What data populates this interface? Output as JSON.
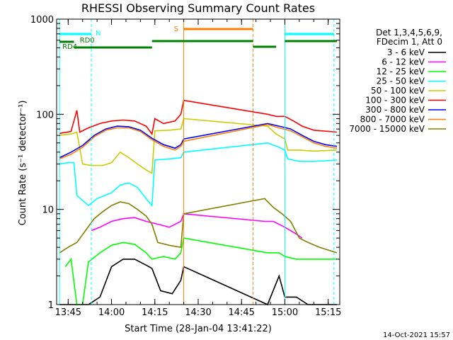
{
  "chart_data": {
    "type": "line",
    "title": "RHESSI Observing Summary Count Rates",
    "xlabel": "Start Time (28-Jan-04 13:41:22)",
    "ylabel": "Count Rate (s⁻¹ detector⁻¹)",
    "y_scale": "log",
    "ylim": [
      1,
      1000
    ],
    "xlim": [
      "13:41",
      "15:19"
    ],
    "x_ticks": [
      "13:45",
      "14:00",
      "14:15",
      "14:30",
      "14:45",
      "15:00",
      "15:15"
    ],
    "y_ticks": [
      "1",
      "10",
      "100",
      "1000"
    ],
    "legend_header": [
      "Det 1,3,4,5,6,9,",
      "FDecim 1, Att 0"
    ],
    "legend_position": "right",
    "footer_date": "14-Oct-2021 15:57",
    "annotations": [
      {
        "label": "N",
        "color": "#00ffff"
      },
      {
        "label": "S",
        "color": "#ff8000"
      },
      {
        "label": "RD0",
        "color": "#008000"
      },
      {
        "label": "RD4",
        "color": "#008000"
      }
    ],
    "series": [
      {
        "name": "3 - 6 keV",
        "color": "#000000",
        "x": [
          "13:42",
          "13:48",
          "13:52",
          "13:56",
          "14:00",
          "14:04",
          "14:08",
          "14:12",
          "14:14",
          "14:17",
          "14:21",
          "14:24",
          "14:25",
          "14:54",
          "14:58",
          "15:00",
          "15:04",
          "15:08",
          "15:12",
          "15:18"
        ],
        "y": [
          1,
          1,
          1,
          1.2,
          2.5,
          3.0,
          3.0,
          2.6,
          2.4,
          1.4,
          1.3,
          1.8,
          2.5,
          1,
          2.0,
          1.2,
          1.2,
          1,
          1,
          1
        ]
      },
      {
        "name": "6 - 12 keV",
        "color": "#ff00ff",
        "x": [
          "13:53",
          "13:56",
          "14:00",
          "14:04",
          "14:08",
          "14:12",
          "14:16",
          "14:20",
          "14:24",
          "14:25",
          "14:53",
          "14:56",
          "15:00",
          "15:04",
          "15:06"
        ],
        "y": [
          6.0,
          6.5,
          7.5,
          8.0,
          8.2,
          7.5,
          7.0,
          6.5,
          7.5,
          9.0,
          7.5,
          7.5,
          6.5,
          5.5,
          5.0
        ]
      },
      {
        "name": "12 - 25 keV",
        "color": "#00ff00",
        "x": [
          "13:44",
          "13:46",
          "13:48",
          "13:50",
          "13:52",
          "13:56",
          "14:00",
          "14:04",
          "14:08",
          "14:12",
          "14:14",
          "14:18",
          "14:22",
          "14:24",
          "14:25",
          "14:54",
          "14:58",
          "15:00",
          "15:04",
          "15:08",
          "15:12",
          "15:18"
        ],
        "y": [
          2.5,
          3.0,
          1.0,
          1.0,
          2.8,
          3.5,
          4.2,
          4.5,
          4.3,
          3.5,
          3.0,
          3.2,
          3.0,
          3.5,
          5.0,
          3.5,
          3.5,
          3.2,
          3.0,
          3.0,
          3.0,
          3.0
        ]
      },
      {
        "name": "25 - 50 keV",
        "color": "#00ffff",
        "x": [
          "13:42",
          "13:45",
          "13:47",
          "13:48",
          "13:52",
          "13:55",
          "14:00",
          "14:03",
          "14:06",
          "14:09",
          "14:12",
          "14:14",
          "14:15",
          "14:20",
          "14:24",
          "14:25",
          "14:54",
          "14:58",
          "15:00",
          "15:01",
          "15:05",
          "15:10",
          "15:18"
        ],
        "y": [
          30,
          31,
          31,
          14,
          11,
          13,
          15,
          18,
          19,
          17,
          13,
          11,
          33,
          34,
          35,
          40,
          50,
          45,
          42,
          34,
          32,
          32,
          33
        ]
      },
      {
        "name": "50 - 100 keV",
        "color": "#cccc00",
        "x": [
          "13:42",
          "13:46",
          "13:48",
          "13:50",
          "13:53",
          "13:57",
          "14:00",
          "14:03",
          "14:06",
          "14:09",
          "14:12",
          "14:14",
          "14:15",
          "14:20",
          "14:24",
          "14:25",
          "14:54",
          "14:57",
          "15:00",
          "15:01",
          "15:05",
          "15:10",
          "15:18"
        ],
        "y": [
          60,
          62,
          65,
          30,
          29,
          29,
          31,
          40,
          35,
          30,
          26,
          24,
          67,
          68,
          70,
          90,
          75,
          62,
          55,
          42,
          42,
          41,
          42
        ]
      },
      {
        "name": "100 - 300 keV",
        "color": "#ff0000",
        "x": [
          "13:42",
          "13:46",
          "13:48",
          "13:49",
          "13:52",
          "13:56",
          "14:00",
          "14:04",
          "14:08",
          "14:12",
          "14:14",
          "14:15",
          "14:18",
          "14:22",
          "14:24",
          "14:25",
          "14:54",
          "14:57",
          "15:00",
          "15:03",
          "15:06",
          "15:10",
          "15:18"
        ],
        "y": [
          63,
          66,
          110,
          65,
          72,
          80,
          85,
          87,
          85,
          75,
          62,
          90,
          80,
          85,
          100,
          140,
          100,
          95,
          95,
          85,
          75,
          68,
          65
        ]
      },
      {
        "name": "300 - 800 keV",
        "color": "#0000ff",
        "x": [
          "13:42",
          "13:46",
          "13:50",
          "13:54",
          "13:58",
          "14:02",
          "14:06",
          "14:10",
          "14:14",
          "14:18",
          "14:22",
          "14:24",
          "14:25",
          "14:54",
          "14:58",
          "15:02",
          "15:06",
          "15:10",
          "15:14",
          "15:18"
        ],
        "y": [
          35,
          40,
          47,
          60,
          70,
          75,
          74,
          68,
          56,
          48,
          44,
          48,
          55,
          80,
          75,
          70,
          60,
          52,
          48,
          46
        ]
      },
      {
        "name": "800 - 7000 keV",
        "color": "#ff8000",
        "x": [
          "13:42",
          "13:46",
          "13:50",
          "13:54",
          "13:58",
          "14:02",
          "14:06",
          "14:10",
          "14:14",
          "14:18",
          "14:22",
          "14:24",
          "14:25",
          "14:54",
          "14:58",
          "15:02",
          "15:06",
          "15:10",
          "15:14",
          "15:18"
        ],
        "y": [
          34,
          38,
          45,
          58,
          68,
          72,
          72,
          66,
          54,
          46,
          42,
          46,
          52,
          78,
          72,
          67,
          58,
          50,
          46,
          44
        ]
      },
      {
        "name": "7000 - 15000 keV",
        "color": "#808000",
        "x": [
          "13:42",
          "13:45",
          "13:48",
          "13:51",
          "13:54",
          "13:57",
          "14:00",
          "14:03",
          "14:06",
          "14:09",
          "14:12",
          "14:14",
          "14:16",
          "14:20",
          "14:24",
          "14:25",
          "14:53",
          "14:56",
          "14:59",
          "15:02",
          "15:05",
          "15:08",
          "15:12",
          "15:18"
        ],
        "y": [
          3.5,
          4.0,
          4.5,
          6.0,
          8.0,
          9.5,
          11.0,
          12.0,
          11.5,
          10.0,
          8.5,
          7.0,
          4.5,
          4.2,
          4.0,
          9.0,
          13.0,
          10.5,
          9.0,
          7.5,
          5.0,
          4.5,
          4.0,
          3.5
        ]
      }
    ]
  }
}
